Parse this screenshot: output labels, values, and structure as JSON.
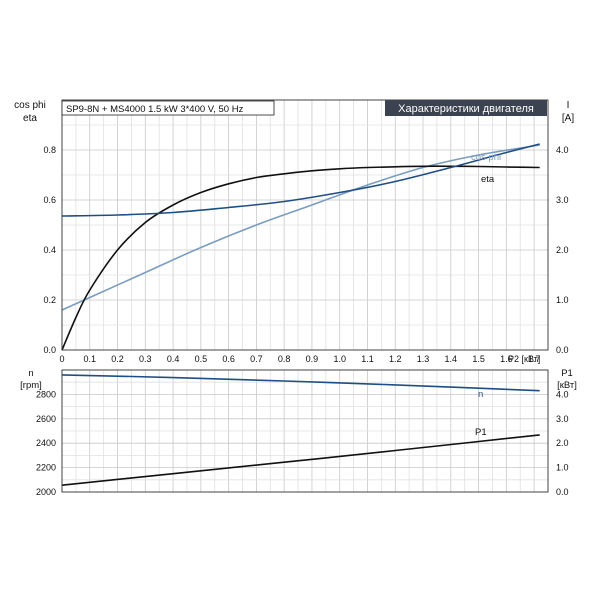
{
  "chart_data": [
    {
      "type": "line",
      "title_box": "SP9-8N + MS4000   1.5 kW   3*400 V, 50 Hz",
      "banner": "Характеристики двигателя",
      "left_axis_label_1": "cos phi",
      "left_axis_label_2": "eta",
      "right_axis_label_1": "I",
      "right_axis_label_2": "[A]",
      "x_axis_label": "P2 [кВт]",
      "xlim": [
        0,
        1.75
      ],
      "x_ticks": [
        "0",
        "0.1",
        "0.2",
        "0.3",
        "0.4",
        "0.5",
        "0.6",
        "0.7",
        "0.8",
        "0.9",
        "1.0",
        "1.1",
        "1.2",
        "1.3",
        "1.4",
        "1.5",
        "1.6",
        "1.7"
      ],
      "ylim_left": [
        0,
        1.0
      ],
      "y_left_ticks": [
        "0.0",
        "0.2",
        "0.4",
        "0.6",
        "0.8"
      ],
      "ylim_right": [
        0,
        5.0
      ],
      "y_right_ticks": [
        "0.0",
        "1.0",
        "2.0",
        "3.0",
        "4.0"
      ],
      "grid": true,
      "series": [
        {
          "name": "cos phi",
          "axis": "left",
          "color": "#7a9cc0",
          "x": [
            0,
            0.1,
            0.3,
            0.5,
            0.7,
            0.9,
            1.1,
            1.3,
            1.5,
            1.72
          ],
          "y": [
            0.16,
            0.21,
            0.31,
            0.41,
            0.5,
            0.58,
            0.66,
            0.73,
            0.78,
            0.82
          ]
        },
        {
          "name": "eta",
          "axis": "left",
          "color": "#111111",
          "x": [
            0,
            0.05,
            0.1,
            0.2,
            0.3,
            0.4,
            0.5,
            0.6,
            0.7,
            0.8,
            0.9,
            1.0,
            1.1,
            1.2,
            1.3,
            1.4,
            1.5,
            1.6,
            1.72
          ],
          "y": [
            0.0,
            0.13,
            0.24,
            0.4,
            0.51,
            0.58,
            0.63,
            0.665,
            0.69,
            0.705,
            0.717,
            0.725,
            0.73,
            0.733,
            0.735,
            0.735,
            0.734,
            0.732,
            0.73
          ]
        },
        {
          "name": "I",
          "axis": "right",
          "color": "#1f4e86",
          "x": [
            0,
            0.2,
            0.4,
            0.6,
            0.8,
            1.0,
            1.2,
            1.4,
            1.6,
            1.72
          ],
          "y": [
            2.68,
            2.7,
            2.75,
            2.85,
            2.97,
            3.15,
            3.37,
            3.65,
            3.95,
            4.12
          ]
        }
      ]
    },
    {
      "type": "line",
      "left_axis_label_1": "n",
      "left_axis_label_2": "[rpm]",
      "right_axis_label_1": "P1",
      "right_axis_label_2": "[кВт]",
      "xlim": [
        0,
        1.75
      ],
      "ylim_left": [
        2000,
        3000
      ],
      "y_left_ticks": [
        "2000",
        "2200",
        "2400",
        "2600",
        "2800"
      ],
      "ylim_right": [
        0,
        5.0
      ],
      "y_right_ticks": [
        "0.0",
        "1.0",
        "2.0",
        "3.0",
        "4.0"
      ],
      "grid": true,
      "series": [
        {
          "name": "n",
          "axis": "left",
          "color": "#1f4e86",
          "x": [
            0,
            0.4,
            0.8,
            1.2,
            1.72
          ],
          "y": [
            2960,
            2938,
            2910,
            2878,
            2830
          ]
        },
        {
          "name": "P1",
          "axis": "right",
          "color": "#111111",
          "x": [
            0,
            0.4,
            0.8,
            1.2,
            1.72
          ],
          "y": [
            0.28,
            0.75,
            1.22,
            1.7,
            2.34
          ]
        }
      ]
    }
  ]
}
